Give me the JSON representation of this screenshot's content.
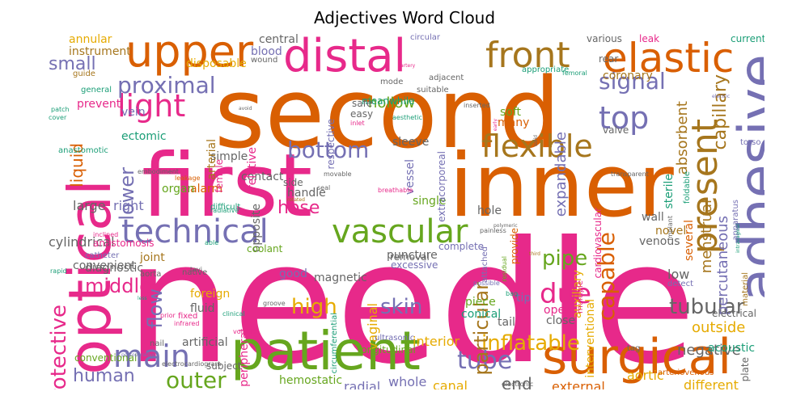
{
  "title": "Adjectives Word Cloud",
  "palette": {
    "pink": "#e7298a",
    "orange": "#d95f02",
    "purple": "#7570b3",
    "green": "#66a61e",
    "gold": "#e6ab02",
    "teal": "#1b9e77",
    "brown": "#a6761d",
    "gray": "#666666"
  },
  "words": [
    "needle",
    "second",
    "first",
    "inner",
    "optical",
    "adhesive",
    "patient",
    "surgical",
    "distal",
    "upper",
    "elastic",
    "front",
    "technical",
    "vascular",
    "light",
    "main",
    "present",
    "flexible",
    "top",
    "proximal",
    "signal",
    "bottom",
    "due",
    "capable",
    "tube",
    "outer",
    "tubular",
    "protective",
    "inflatable",
    "middle",
    "pipe",
    "skin",
    "flow",
    "high",
    "small",
    "human",
    "end",
    "hose",
    "lower",
    "liquid",
    "particular",
    "capillary",
    "absorbent",
    "menstrual",
    "percutaneous",
    "coronary",
    "hollow",
    "expandable",
    "soft",
    "many",
    "valve",
    "sterile",
    "torso",
    "interior",
    "whole",
    "canal",
    "radial",
    "external",
    "different",
    "aortic",
    "outside",
    "negative",
    "acoustic",
    "electrical",
    "plate",
    "interventional",
    "open",
    "close",
    "tail",
    "piece",
    "conical",
    "tip",
    "low",
    "detect",
    "material",
    "wall",
    "venous",
    "novel",
    "auxiliary",
    "multiple",
    "puncture",
    "magnetic",
    "circumferential",
    "vaginal",
    "single",
    "hole",
    "complete",
    "excessive",
    "removal",
    "extracorporeal",
    "vessel",
    "side",
    "handle",
    "opposite",
    "peripheral",
    "artificial",
    "foreign",
    "fluid",
    "fixed",
    "native",
    "joint",
    "coolant",
    "good",
    "ultrasonic",
    "longitudinal",
    "hemostatic",
    "conventional",
    "cylindrical",
    "large",
    "right",
    "alarm",
    "organ",
    "ectomic",
    "anastomotic",
    "simple",
    "arterial",
    "contact",
    "relative",
    "respective",
    "sleeve",
    "central",
    "blood",
    "wound",
    "disposable",
    "annular",
    "instrument",
    "guide",
    "general",
    "prevent",
    "vein",
    "easy",
    "safe",
    "meanwhile",
    "mode",
    "suitable",
    "adjacent",
    "circular",
    "appropriate",
    "femoral",
    "rear",
    "various",
    "leak",
    "current",
    "electric",
    "transparent",
    "several",
    "implant",
    "foldable",
    "apparatus",
    "cardiovascular",
    "intravaginal",
    "provide",
    "attached",
    "residual",
    "polymeric",
    "third",
    "possible",
    "bag",
    "painless",
    "breathable",
    "inserted",
    "aesthetic",
    "solid",
    "early",
    "artery",
    "female",
    "inlet",
    "avoid",
    "patch",
    "cover",
    "leakage",
    "embodiment",
    "difficult",
    "radiative",
    "convenient",
    "inclined",
    "anastomosis",
    "tavi",
    "rotated",
    "movable",
    "seal",
    "able",
    "aorta",
    "diagnostic",
    "rapid",
    "catheter",
    "prior",
    "nail",
    "infrared",
    "clinical",
    "less",
    "groove",
    "volatile",
    "subject",
    "postoperative",
    "electrocardiogram",
    "arteriovenous",
    "tag",
    "electronic"
  ]
}
